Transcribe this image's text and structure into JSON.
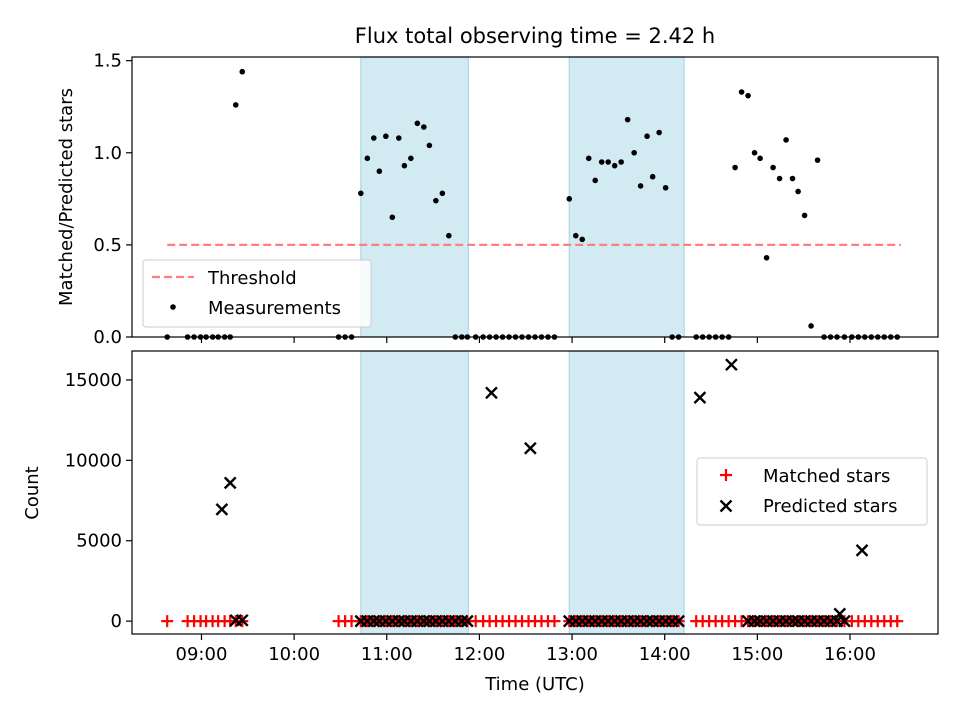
{
  "figure": {
    "title": "Flux total observing time = 2.42 h",
    "xlabel": "Time (UTC)"
  },
  "colors": {
    "shade": "#add8e6",
    "threshold": "#ff7f7f",
    "matched": "#ff0000",
    "predicted": "#000000",
    "points": "#000000"
  },
  "chart_data": [
    {
      "type": "scatter",
      "name": "ratio-panel",
      "title": "Flux total observing time = 2.42 h",
      "ylabel": "Matched/Predicted stars",
      "xlabel": "",
      "x_unit": "hours UTC",
      "xlim": [
        8.25,
        16.95
      ],
      "ylim": [
        0.0,
        1.52
      ],
      "yticks": [
        0.0,
        0.5,
        1.0,
        1.5
      ],
      "ytick_labels": [
        "0.0",
        "0.5",
        "1.0",
        "1.5"
      ],
      "xticks": [
        9,
        10,
        11,
        12,
        13,
        14,
        15,
        16
      ],
      "shaded_intervals": [
        [
          10.72,
          11.88
        ],
        [
          12.97,
          14.21
        ]
      ],
      "grid": false,
      "legend": {
        "placement": "lower-left",
        "entries": [
          "Threshold",
          "Measurements"
        ]
      },
      "threshold": {
        "name": "Threshold",
        "y": 0.5,
        "x_range": [
          8.63,
          16.55
        ]
      },
      "series": [
        {
          "name": "Measurements",
          "x": [
            8.63,
            8.85,
            8.92,
            8.99,
            9.05,
            9.12,
            9.18,
            9.25,
            9.31,
            9.37,
            9.44,
            10.48,
            10.55,
            10.62,
            10.72,
            10.79,
            10.86,
            10.92,
            10.99,
            11.06,
            11.13,
            11.19,
            11.26,
            11.33,
            11.4,
            11.46,
            11.53,
            11.6,
            11.67,
            11.74,
            11.81,
            11.87,
            11.96,
            12.04,
            12.11,
            12.18,
            12.25,
            12.32,
            12.39,
            12.46,
            12.53,
            12.6,
            12.67,
            12.74,
            12.81,
            12.97,
            13.04,
            13.11,
            13.18,
            13.25,
            13.32,
            13.39,
            13.46,
            13.53,
            13.6,
            13.67,
            13.74,
            13.81,
            13.87,
            13.94,
            14.01,
            14.08,
            14.15,
            14.34,
            14.41,
            14.48,
            14.55,
            14.62,
            14.69,
            14.76,
            14.83,
            14.9,
            14.97,
            15.03,
            15.1,
            15.17,
            15.24,
            15.31,
            15.38,
            15.44,
            15.51,
            15.58,
            15.65,
            15.72,
            15.79,
            15.86,
            15.94,
            16.02,
            16.09,
            16.16,
            16.23,
            16.3,
            16.37,
            16.44,
            16.51
          ],
          "y": [
            0.0,
            0.0,
            0.0,
            0.0,
            0.0,
            0.0,
            0.0,
            0.0,
            0.0,
            1.26,
            1.44,
            0.0,
            0.0,
            0.0,
            0.78,
            0.97,
            1.08,
            0.9,
            1.09,
            0.65,
            1.08,
            0.93,
            0.97,
            1.16,
            1.14,
            1.04,
            0.74,
            0.78,
            0.55,
            0.0,
            0.0,
            0.0,
            0.0,
            0.0,
            0.0,
            0.0,
            0.0,
            0.0,
            0.0,
            0.0,
            0.0,
            0.0,
            0.0,
            0.0,
            0.0,
            0.75,
            0.55,
            0.53,
            0.97,
            0.85,
            0.95,
            0.95,
            0.93,
            0.95,
            1.18,
            1.0,
            0.82,
            1.09,
            0.87,
            1.11,
            0.81,
            0.0,
            0.0,
            0.0,
            0.0,
            0.0,
            0.0,
            0.0,
            0.0,
            0.92,
            1.33,
            1.31,
            1.0,
            0.97,
            0.43,
            0.92,
            0.86,
            1.07,
            0.86,
            0.79,
            0.66,
            0.06,
            0.96,
            0.0,
            0.0,
            0.0,
            0.0,
            0.0,
            0.0,
            0.0,
            0.0,
            0.0,
            0.0,
            0.0,
            0.0
          ]
        }
      ]
    },
    {
      "type": "scatter",
      "name": "count-panel",
      "title": "",
      "ylabel": "Count",
      "xlabel": "Time (UTC)",
      "x_unit": "hours UTC",
      "xlim": [
        8.25,
        16.95
      ],
      "ylim": [
        -800,
        16800
      ],
      "yticks": [
        0,
        5000,
        10000,
        15000
      ],
      "ytick_labels": [
        "0",
        "5000",
        "10000",
        "15000"
      ],
      "xticks": [
        9,
        10,
        11,
        12,
        13,
        14,
        15,
        16
      ],
      "xtick_labels": [
        "09:00",
        "10:00",
        "11:00",
        "12:00",
        "13:00",
        "14:00",
        "15:00",
        "16:00"
      ],
      "shaded_intervals": [
        [
          10.72,
          11.88
        ],
        [
          12.97,
          14.21
        ]
      ],
      "grid": false,
      "legend": {
        "placement": "center-right",
        "entries": [
          "Matched stars",
          "Predicted stars"
        ]
      },
      "series": [
        {
          "name": "Matched stars",
          "marker": "plus",
          "x": [
            8.63,
            8.85,
            8.92,
            8.99,
            9.05,
            9.12,
            9.18,
            9.25,
            9.31,
            9.37,
            9.44,
            10.48,
            10.55,
            10.62,
            10.72,
            10.79,
            10.86,
            10.92,
            10.99,
            11.06,
            11.13,
            11.19,
            11.26,
            11.33,
            11.4,
            11.46,
            11.53,
            11.6,
            11.67,
            11.74,
            11.81,
            11.87,
            11.96,
            12.04,
            12.11,
            12.18,
            12.25,
            12.32,
            12.39,
            12.46,
            12.53,
            12.6,
            12.67,
            12.74,
            12.81,
            12.97,
            13.04,
            13.11,
            13.18,
            13.25,
            13.32,
            13.39,
            13.46,
            13.53,
            13.6,
            13.67,
            13.74,
            13.81,
            13.87,
            13.94,
            14.01,
            14.08,
            14.15,
            14.34,
            14.41,
            14.48,
            14.55,
            14.62,
            14.69,
            14.76,
            14.83,
            14.9,
            14.97,
            15.03,
            15.1,
            15.17,
            15.24,
            15.31,
            15.38,
            15.44,
            15.51,
            15.58,
            15.65,
            15.72,
            15.79,
            15.86,
            15.94,
            16.02,
            16.09,
            16.16,
            16.23,
            16.3,
            16.37,
            16.44,
            16.51
          ],
          "y": [
            0,
            0,
            0,
            0,
            0,
            0,
            0,
            0,
            0,
            0,
            0,
            0,
            0,
            0,
            0,
            0,
            0,
            0,
            0,
            0,
            0,
            0,
            0,
            0,
            0,
            0,
            0,
            0,
            0,
            0,
            0,
            0,
            0,
            0,
            0,
            0,
            0,
            0,
            0,
            0,
            0,
            0,
            0,
            0,
            0,
            0,
            0,
            0,
            0,
            0,
            0,
            0,
            0,
            0,
            0,
            0,
            0,
            0,
            0,
            0,
            0,
            0,
            0,
            0,
            0,
            0,
            0,
            0,
            0,
            0,
            0,
            0,
            0,
            0,
            0,
            0,
            0,
            0,
            0,
            0,
            0,
            0,
            0,
            0,
            0,
            0,
            0,
            0,
            0,
            0,
            0,
            0,
            0,
            0,
            0
          ]
        },
        {
          "name": "Predicted stars",
          "marker": "x",
          "x": [
            9.22,
            9.31,
            9.37,
            9.44,
            10.72,
            10.79,
            10.86,
            10.92,
            10.99,
            11.06,
            11.13,
            11.19,
            11.26,
            11.33,
            11.4,
            11.46,
            11.53,
            11.6,
            11.67,
            11.74,
            11.81,
            11.87,
            12.13,
            12.55,
            12.97,
            13.04,
            13.11,
            13.18,
            13.25,
            13.32,
            13.39,
            13.46,
            13.53,
            13.6,
            13.67,
            13.74,
            13.81,
            13.87,
            13.94,
            14.01,
            14.08,
            14.15,
            14.38,
            14.72,
            14.9,
            14.97,
            15.03,
            15.1,
            15.17,
            15.24,
            15.31,
            15.38,
            15.44,
            15.51,
            15.58,
            15.65,
            15.72,
            15.79,
            15.86,
            15.89,
            15.94,
            16.13
          ],
          "y": [
            6950,
            8600,
            50,
            50,
            0,
            0,
            0,
            0,
            0,
            0,
            0,
            0,
            0,
            0,
            0,
            0,
            0,
            0,
            0,
            0,
            0,
            0,
            14200,
            10750,
            0,
            0,
            0,
            0,
            0,
            0,
            0,
            0,
            0,
            0,
            0,
            0,
            0,
            0,
            0,
            0,
            0,
            0,
            13900,
            15950,
            0,
            0,
            0,
            0,
            0,
            0,
            0,
            0,
            0,
            0,
            0,
            0,
            0,
            0,
            0,
            450,
            0,
            4400
          ]
        }
      ]
    }
  ]
}
